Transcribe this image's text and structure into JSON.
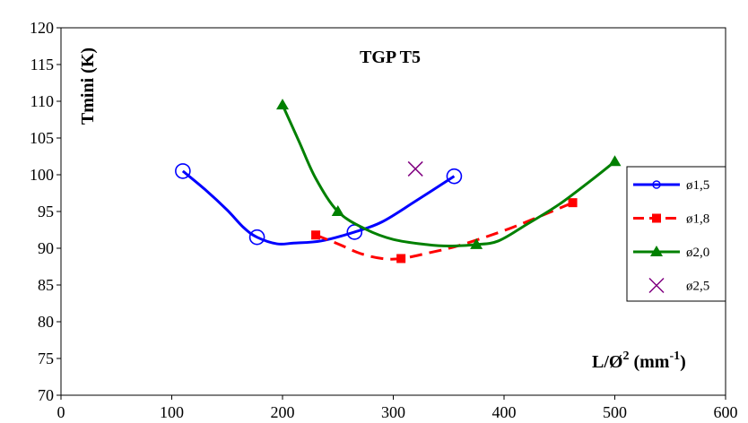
{
  "chart_data": {
    "type": "line",
    "title": "TGP T5",
    "ylabel": "Tmini (K)",
    "xlabel_main": "L/Ø",
    "xlabel_sup1": "2",
    "xlabel_mid": " (mm",
    "xlabel_sup2": "-1",
    "xlabel_end": ")",
    "xlim": [
      0,
      600
    ],
    "ylim": [
      70,
      120
    ],
    "xticks": [
      0,
      100,
      200,
      300,
      400,
      500,
      600
    ],
    "yticks": [
      70,
      75,
      80,
      85,
      90,
      95,
      100,
      105,
      110,
      115,
      120
    ],
    "legend_position": "right",
    "grid": false,
    "series": [
      {
        "name": "ø1,5",
        "color": "#0000ff",
        "marker": "circle-open",
        "dash": "",
        "points": [
          [
            110,
            100.5
          ],
          [
            177,
            91.5
          ],
          [
            265,
            92.2
          ],
          [
            355,
            99.8
          ]
        ],
        "curve": [
          [
            110,
            100.5
          ],
          [
            130,
            98.0
          ],
          [
            150,
            95.2
          ],
          [
            165,
            92.8
          ],
          [
            177,
            91.5
          ],
          [
            195,
            90.6
          ],
          [
            210,
            90.7
          ],
          [
            235,
            91.0
          ],
          [
            265,
            92.2
          ],
          [
            290,
            93.6
          ],
          [
            320,
            96.4
          ],
          [
            355,
            99.8
          ]
        ]
      },
      {
        "name": "ø1,8",
        "color": "#ff0000",
        "marker": "square",
        "dash": "14,8",
        "points": [
          [
            230,
            91.8
          ],
          [
            307,
            88.6
          ],
          [
            462,
            96.2
          ]
        ],
        "curve": [
          [
            230,
            91.8
          ],
          [
            250,
            90.6
          ],
          [
            270,
            89.3
          ],
          [
            290,
            88.6
          ],
          [
            307,
            88.6
          ],
          [
            330,
            89.3
          ],
          [
            360,
            90.4
          ],
          [
            400,
            92.4
          ],
          [
            430,
            94.2
          ],
          [
            462,
            96.2
          ]
        ]
      },
      {
        "name": "ø2,0",
        "color": "#008000",
        "marker": "triangle",
        "dash": "",
        "points": [
          [
            200,
            109.5
          ],
          [
            250,
            95.0
          ],
          [
            375,
            90.5
          ],
          [
            500,
            101.8
          ]
        ],
        "curve": [
          [
            200,
            109.5
          ],
          [
            215,
            104.5
          ],
          [
            230,
            99.5
          ],
          [
            250,
            95.0
          ],
          [
            275,
            92.6
          ],
          [
            300,
            91.2
          ],
          [
            330,
            90.5
          ],
          [
            350,
            90.3
          ],
          [
            375,
            90.5
          ],
          [
            395,
            91.0
          ],
          [
            420,
            93.2
          ],
          [
            450,
            96.0
          ],
          [
            480,
            99.4
          ],
          [
            500,
            101.8
          ]
        ]
      },
      {
        "name": "ø2,5",
        "color": "#800080",
        "marker": "x",
        "dash": "none",
        "points": [
          [
            320,
            100.8
          ]
        ],
        "curve": []
      }
    ]
  }
}
